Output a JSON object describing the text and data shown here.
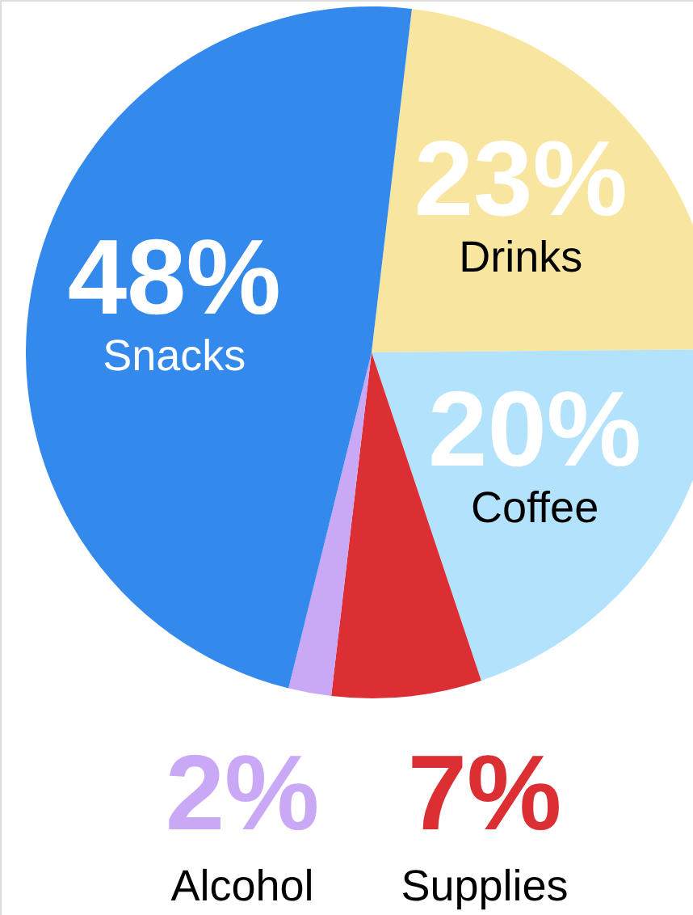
{
  "chart_data": {
    "type": "pie",
    "categories": [
      "Drinks",
      "Coffee",
      "Supplies",
      "Alcohol",
      "Snacks"
    ],
    "values": [
      23,
      20,
      7,
      2,
      48
    ],
    "value_labels": [
      "23%",
      "20%",
      "7%",
      "2%",
      "48%"
    ],
    "colors": [
      "#f8e6a0",
      "#b3e3fc",
      "#dc2f33",
      "#c9a8f5",
      "#3389ec"
    ]
  }
}
